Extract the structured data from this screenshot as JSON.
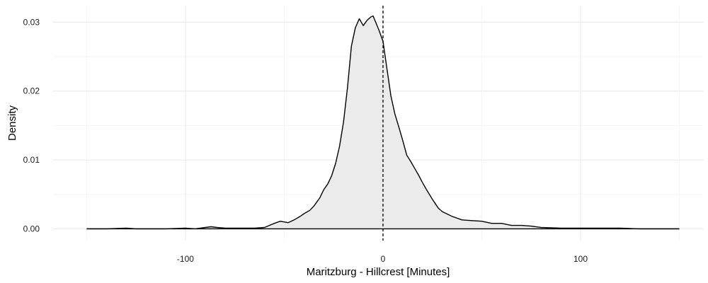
{
  "chart_data": {
    "type": "area",
    "title": "",
    "xlabel": "Maritzburg - Hillcrest [Minutes]",
    "ylabel": "Density",
    "xlim": [
      -167,
      162
    ],
    "ylim": [
      -0.0017,
      0.0324
    ],
    "x_ticks": [
      -100,
      0,
      100
    ],
    "x_tick_labels": [
      "-100",
      "0",
      "100"
    ],
    "y_ticks": [
      0.0,
      0.01,
      0.02,
      0.03
    ],
    "y_tick_labels": [
      "0.00",
      "0.01",
      "0.02",
      "0.03"
    ],
    "x_minor_ticks": [
      -150,
      -50,
      50,
      150
    ],
    "y_minor_ticks": [
      0.005,
      0.015,
      0.025
    ],
    "grid": true,
    "reference_line": {
      "x": 0,
      "style": "dashed"
    },
    "fill_color": "#ebebeb",
    "line_color": "#000000",
    "series": [
      {
        "x": [
          -150,
          -140,
          -130,
          -125,
          -120,
          -110,
          -100,
          -95,
          -90,
          -87,
          -84,
          -80,
          -75,
          -70,
          -65,
          -60,
          -55,
          -52,
          -50,
          -48,
          -45,
          -42,
          -40,
          -37,
          -35,
          -32,
          -30,
          -28,
          -26,
          -24,
          -22,
          -20,
          -18,
          -16,
          -14,
          -12,
          -10,
          -8,
          -6,
          -5,
          -4,
          -2,
          0,
          2,
          4,
          6,
          8,
          10,
          12,
          14,
          16,
          18,
          20,
          22,
          25,
          28,
          30,
          35,
          40,
          45,
          50,
          55,
          60,
          65,
          70,
          75,
          80,
          90,
          100,
          110,
          120,
          130,
          140,
          150
        ],
        "y": [
          0.0,
          0.0,
          0.0001,
          0.0,
          0.0,
          0.0,
          0.0001,
          0.0,
          0.0002,
          0.0003,
          0.0002,
          0.0001,
          0.0001,
          0.0001,
          0.0001,
          0.0002,
          0.0008,
          0.0011,
          0.001,
          0.0009,
          0.0013,
          0.0018,
          0.0022,
          0.0027,
          0.0033,
          0.0045,
          0.0057,
          0.0065,
          0.0077,
          0.0095,
          0.012,
          0.0155,
          0.0205,
          0.0265,
          0.0292,
          0.0305,
          0.0295,
          0.0303,
          0.0308,
          0.0309,
          0.0302,
          0.0288,
          0.0272,
          0.0232,
          0.0193,
          0.0167,
          0.0148,
          0.0128,
          0.0107,
          0.0098,
          0.0088,
          0.0078,
          0.0067,
          0.0057,
          0.0043,
          0.003,
          0.0025,
          0.0018,
          0.0013,
          0.0012,
          0.0011,
          0.0008,
          0.0008,
          0.0005,
          0.0005,
          0.0004,
          0.0002,
          0.0001,
          0.0001,
          0.0001,
          0.0001,
          0.0,
          0.0,
          0.0
        ]
      }
    ]
  }
}
